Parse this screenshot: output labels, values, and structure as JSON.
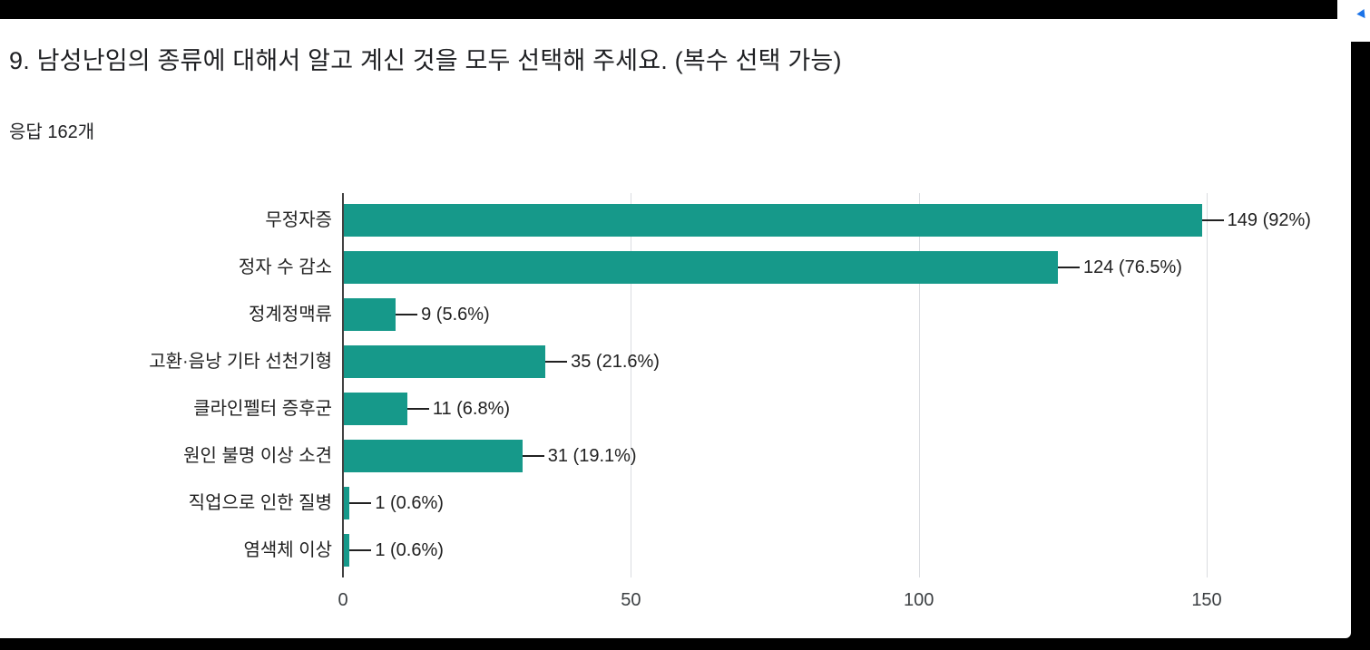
{
  "header": {
    "question_title": "9. 남성난임의 종류에 대해서 알고 계신 것을 모두 선택해 주세요.  (복수 선택 가능)",
    "response_count": "응답 162개"
  },
  "colors": {
    "page_background": "#000000",
    "card_background": "#ffffff",
    "text_primary": "#202124",
    "accent_blue": "#1a73e8"
  },
  "chart_data": {
    "type": "bar",
    "orientation": "horizontal",
    "title": "",
    "xlabel": "",
    "ylabel": "",
    "categories": [
      "무정자증",
      "정자 수 감소",
      "정계정맥류",
      "고환·음낭 기타 선천기형",
      "클라인펠터 증후군",
      "원인 불명 이상 소견",
      "직업으로 인한 질병",
      "염색체 이상"
    ],
    "values": [
      149,
      124,
      9,
      35,
      11,
      31,
      1,
      1
    ],
    "value_labels": [
      "149 (92%)",
      "124 (76.5%)",
      "9 (5.6%)",
      "35 (21.6%)",
      "11 (6.8%)",
      "31 (19.1%)",
      "1 (0.6%)",
      "1 (0.6%)"
    ],
    "x_ticks": [
      0,
      50,
      100,
      150
    ],
    "xlim": [
      0,
      170
    ],
    "grid": true,
    "legend": false,
    "bar_color": "#16998a",
    "gridline_color": "#dadce0",
    "axis_line_color": "#424242",
    "label_color": "#212121"
  }
}
